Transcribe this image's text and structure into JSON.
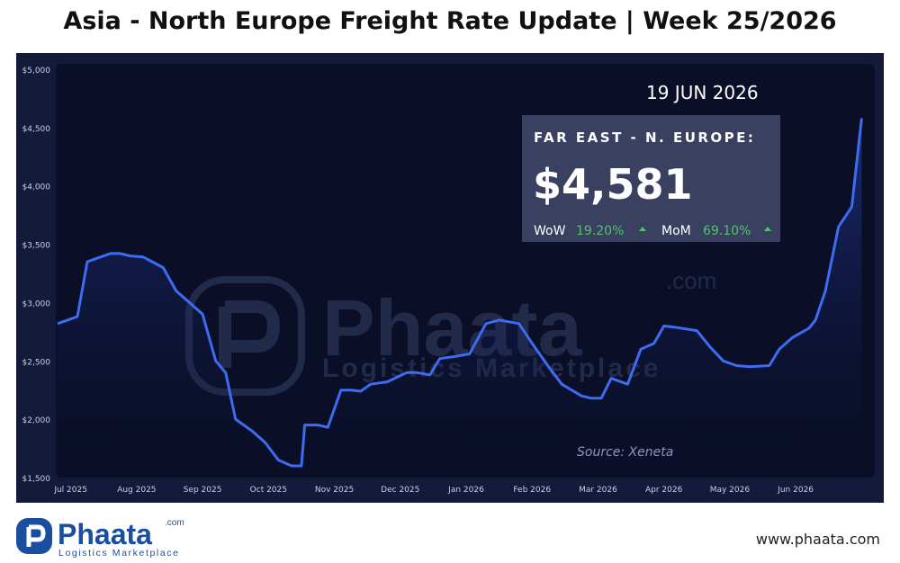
{
  "page": {
    "title": "Asia - North Europe Freight Rate Update | Week 25/2026",
    "website": "www.phaata.com"
  },
  "logo": {
    "name": "Phaata",
    "tld": ".com",
    "tagline": "Logistics Marketplace",
    "brand_color": "#1a4fa0"
  },
  "watermark": {
    "name": "Phaata",
    "tld": ".com",
    "tagline": "Logistics Marketplace"
  },
  "info_box": {
    "date": "19 JUN 2026",
    "label": "FAR EAST - N. EUROPE:",
    "price": "$4,581",
    "wow_label": "WoW",
    "wow_value": "19.20%",
    "mom_label": "MoM",
    "mom_value": "69.10%",
    "positive_color": "#4fc36b"
  },
  "source": "Source: Xeneta",
  "colors": {
    "panel_bg": "#141a3a",
    "plot_bg": "#0a0e27",
    "line": "#3d6cf0"
  },
  "chart_data": {
    "type": "line",
    "title": "Asia - North Europe Freight Rate Update | Week 25/2026",
    "xlabel": "",
    "ylabel": "",
    "ylim": [
      1500,
      5000
    ],
    "yticks": [
      1500,
      2000,
      2500,
      3000,
      3500,
      4000,
      4500,
      5000
    ],
    "ytick_labels": [
      "$1,500",
      "$2,000",
      "$2,500",
      "$3,000",
      "$3,500",
      "$4,000",
      "$4,500",
      "$5,000"
    ],
    "xlim": [
      0,
      12.4
    ],
    "xticks": [
      0.2,
      1.2,
      2.2,
      3.2,
      4.2,
      5.2,
      6.2,
      7.2,
      8.2,
      9.2,
      10.2,
      11.2
    ],
    "xtick_labels": [
      "Jul 2025",
      "Aug 2025",
      "Sep 2025",
      "Oct 2025",
      "Nov 2025",
      "Dec 2025",
      "Jan 2026",
      "Feb 2026",
      "Mar 2026",
      "Apr 2026",
      "May 2026",
      "Jun 2026"
    ],
    "grid": false,
    "legend": "none",
    "series": [
      {
        "x": [
          0.0,
          0.15,
          0.3,
          0.45,
          0.5,
          0.65,
          0.8,
          0.95,
          1.1,
          1.3,
          1.6,
          1.8,
          2.0,
          2.2,
          2.4,
          2.55,
          2.7,
          2.95,
          3.15,
          3.35,
          3.55,
          3.7,
          3.75,
          3.95,
          4.1,
          4.3,
          4.45,
          4.6,
          4.75,
          5.0,
          5.3,
          5.45,
          5.65,
          5.8,
          6.05,
          6.25,
          6.5,
          6.7,
          7.0,
          7.2,
          7.45,
          7.65,
          7.95,
          8.1,
          8.25,
          8.4,
          8.65,
          8.85,
          9.05,
          9.2,
          9.35,
          9.7,
          9.9,
          10.1,
          10.3,
          10.5,
          10.8,
          10.95,
          11.15,
          11.4,
          11.5,
          11.65,
          11.85,
          12.05,
          12.2
        ],
        "values": [
          2820,
          2850,
          2880,
          3350,
          3360,
          3390,
          3420,
          3420,
          3400,
          3390,
          3300,
          3100,
          3000,
          2900,
          2500,
          2400,
          2000,
          1900,
          1800,
          1650,
          1600,
          1600,
          1950,
          1950,
          1930,
          2250,
          2250,
          2240,
          2300,
          2320,
          2400,
          2400,
          2380,
          2520,
          2540,
          2560,
          2820,
          2850,
          2820,
          2650,
          2450,
          2300,
          2200,
          2180,
          2180,
          2350,
          2300,
          2600,
          2650,
          2800,
          2790,
          2760,
          2620,
          2500,
          2460,
          2450,
          2460,
          2600,
          2700,
          2780,
          2850,
          3100,
          3650,
          3820,
          4581
        ]
      }
    ]
  }
}
